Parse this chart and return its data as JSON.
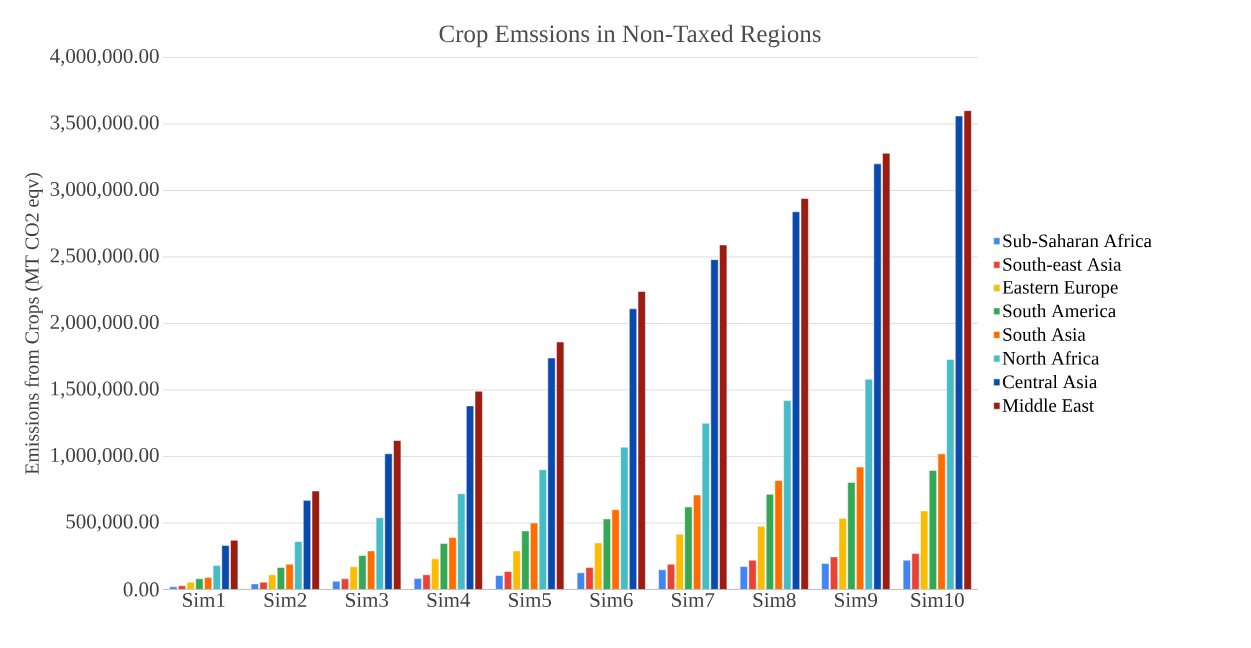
{
  "chart_data": {
    "type": "bar",
    "title": "Crop Emssions in Non-Taxed Regions",
    "ylabel": "Emissions from Crops (MT CO2 eqv)",
    "categories": [
      "Sim1",
      "Sim2",
      "Sim3",
      "Sim4",
      "Sim5",
      "Sim6",
      "Sim7",
      "Sim8",
      "Sim9",
      "Sim10"
    ],
    "series": [
      {
        "name": "Sub-Saharan Africa",
        "color": "#4285f4",
        "values": [
          20000,
          42000,
          62000,
          82000,
          105000,
          125000,
          148000,
          172000,
          195000,
          220000
        ]
      },
      {
        "name": "South-east Asia",
        "color": "#ea4335",
        "values": [
          28000,
          55000,
          80000,
          110000,
          135000,
          165000,
          190000,
          220000,
          245000,
          270000
        ]
      },
      {
        "name": "Eastern Europe",
        "color": "#fbbc04",
        "values": [
          55000,
          110000,
          170000,
          230000,
          290000,
          350000,
          415000,
          475000,
          535000,
          590000
        ]
      },
      {
        "name": "South America",
        "color": "#34a853",
        "values": [
          80000,
          165000,
          255000,
          345000,
          440000,
          530000,
          620000,
          715000,
          805000,
          895000
        ]
      },
      {
        "name": "South Asia",
        "color": "#ff6d01",
        "values": [
          90000,
          190000,
          290000,
          390000,
          500000,
          600000,
          710000,
          820000,
          920000,
          1020000
        ]
      },
      {
        "name": "North Africa",
        "color": "#46bdc6",
        "values": [
          180000,
          360000,
          540000,
          720000,
          900000,
          1070000,
          1250000,
          1420000,
          1580000,
          1730000
        ]
      },
      {
        "name": "Central Asia",
        "color": "#0b4aad",
        "values": [
          330000,
          670000,
          1020000,
          1380000,
          1740000,
          2110000,
          2480000,
          2840000,
          3200000,
          3560000
        ]
      },
      {
        "name": "Middle East",
        "color": "#9c1c12",
        "values": [
          370000,
          740000,
          1120000,
          1490000,
          1860000,
          2240000,
          2590000,
          2940000,
          3280000,
          3600000
        ]
      }
    ],
    "ylim": [
      0,
      4000000
    ],
    "yticks": [
      {
        "value": 0,
        "label": "0.00"
      },
      {
        "value": 500000,
        "label": "500,000.00"
      },
      {
        "value": 1000000,
        "label": "1,000,000.00"
      },
      {
        "value": 1500000,
        "label": "1,500,000.00"
      },
      {
        "value": 2000000,
        "label": "2,000,000.00"
      },
      {
        "value": 2500000,
        "label": "2,500,000.00"
      },
      {
        "value": 3000000,
        "label": "3,000,000.00"
      },
      {
        "value": 3500000,
        "label": "3,500,000.00"
      },
      {
        "value": 4000000,
        "label": "4,000,000.00"
      }
    ],
    "grid": "y",
    "legend": "right"
  }
}
